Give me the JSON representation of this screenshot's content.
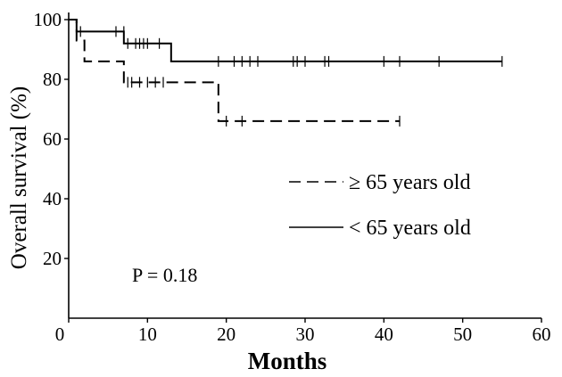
{
  "chart_data": {
    "type": "line",
    "title": "",
    "xlabel": "Months",
    "ylabel": "Overall survival (%)",
    "xlim": [
      0,
      60
    ],
    "ylim": [
      0,
      100
    ],
    "x_ticks": [
      "0",
      "10",
      "20",
      "30",
      "40",
      "50",
      "60"
    ],
    "y_ticks": [
      "20",
      "40",
      "60",
      "80",
      "100"
    ],
    "grid": false,
    "legend_position": "right-center",
    "series": [
      {
        "name": "≥ 65 years old",
        "style": "dashed",
        "color": "#000000",
        "steps": [
          [
            0,
            100
          ],
          [
            1,
            93
          ],
          [
            2,
            86
          ],
          [
            7,
            79
          ],
          [
            19,
            66
          ],
          [
            42,
            66
          ]
        ],
        "censored": [
          [
            7.5,
            79
          ],
          [
            8,
            79
          ],
          [
            9,
            79
          ],
          [
            10,
            79
          ],
          [
            11,
            79
          ],
          [
            12,
            79
          ],
          [
            20,
            66
          ],
          [
            22,
            66
          ],
          [
            42,
            66
          ]
        ]
      },
      {
        "name": "< 65 years old",
        "style": "solid",
        "color": "#000000",
        "steps": [
          [
            0,
            100
          ],
          [
            1,
            96
          ],
          [
            7,
            92
          ],
          [
            13,
            86
          ],
          [
            55,
            86
          ]
        ],
        "censored": [
          [
            1.5,
            96
          ],
          [
            6,
            96
          ],
          [
            7,
            96
          ],
          [
            7.5,
            92
          ],
          [
            8.5,
            92
          ],
          [
            9,
            92
          ],
          [
            9.5,
            92
          ],
          [
            10,
            92
          ],
          [
            11.5,
            92
          ],
          [
            19,
            86
          ],
          [
            21,
            86
          ],
          [
            22,
            86
          ],
          [
            23,
            86
          ],
          [
            24,
            86
          ],
          [
            28.5,
            86
          ],
          [
            29,
            86
          ],
          [
            30,
            86
          ],
          [
            32.5,
            86
          ],
          [
            33,
            86
          ],
          [
            40,
            86
          ],
          [
            42,
            86
          ],
          [
            47,
            86
          ],
          [
            55,
            86
          ]
        ]
      }
    ],
    "annotations": [
      {
        "text": "P = 0.18"
      }
    ]
  }
}
